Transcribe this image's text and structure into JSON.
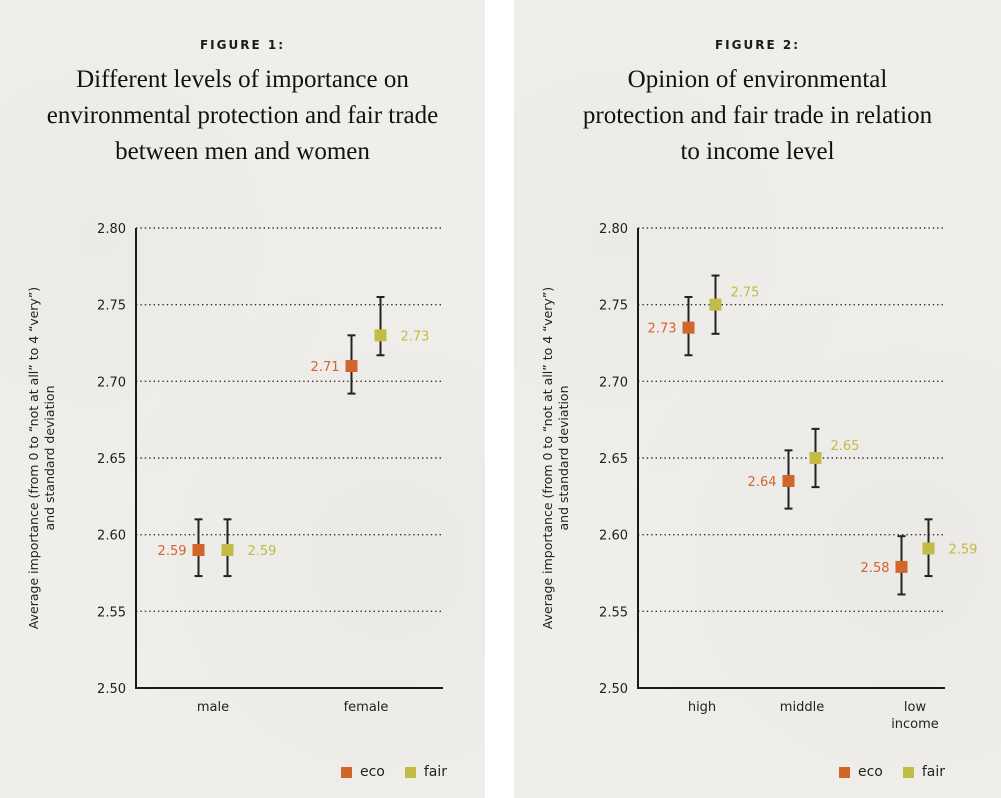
{
  "colors": {
    "eco": "#d2652a",
    "fair": "#c2bb45",
    "axis": "#1a1a1a",
    "grid": "#333333"
  },
  "legend": [
    {
      "key": "eco",
      "label": "eco"
    },
    {
      "key": "fair",
      "label": "fair"
    }
  ],
  "chart_data": [
    {
      "type": "scatter",
      "figure_label": "FIGURE 1:",
      "title": "Different levels of importance on environmental protection and fair trade between men and women",
      "title_lines": [
        "Different levels of importance on",
        "environmental protection and fair trade",
        "between men and women"
      ],
      "ylabel_lines": [
        "Average importance (from 0 to “not at all” to 4 “very”)",
        "and standard deviation"
      ],
      "xlabel": "",
      "ylim": [
        2.5,
        2.8
      ],
      "yticks": [
        "2.50",
        "2.55",
        "2.60",
        "2.65",
        "2.70",
        "2.75",
        "2.80"
      ],
      "grid": true,
      "legend_position": "bottom-right",
      "categories": [
        [
          "male"
        ],
        [
          "female"
        ]
      ],
      "series": [
        {
          "name": "eco",
          "values": [
            2.59,
            2.71
          ],
          "labels": [
            "2.59",
            "2.71"
          ],
          "err_low": [
            2.573,
            2.692
          ],
          "err_high": [
            2.61,
            2.73
          ],
          "label_side": "left"
        },
        {
          "name": "fair",
          "values": [
            2.59,
            2.73
          ],
          "labels": [
            "2.59",
            "2.73"
          ],
          "err_low": [
            2.573,
            2.717
          ],
          "err_high": [
            2.61,
            2.755
          ],
          "label_side": "right"
        }
      ]
    },
    {
      "type": "scatter",
      "figure_label": "FIGURE 2:",
      "title": "Opinion of environmental protection and fair trade in relation to income level",
      "title_lines": [
        "Opinion of environmental",
        "protection and fair trade in relation",
        "to income level"
      ],
      "ylabel_lines": [
        "Average importance (from 0 to “not at all” to 4 “very”)",
        "and standard deviation"
      ],
      "xlabel": "",
      "ylim": [
        2.5,
        2.8
      ],
      "yticks": [
        "2.50",
        "2.55",
        "2.60",
        "2.65",
        "2.70",
        "2.75",
        "2.80"
      ],
      "grid": true,
      "legend_position": "bottom-right",
      "categories": [
        [
          "high"
        ],
        [
          "middle"
        ],
        [
          "low",
          "income"
        ]
      ],
      "series": [
        {
          "name": "eco",
          "values": [
            2.735,
            2.635,
            2.579
          ],
          "labels": [
            "2.73",
            "2.64",
            "2.58"
          ],
          "err_low": [
            2.717,
            2.617,
            2.561
          ],
          "err_high": [
            2.755,
            2.655,
            2.599
          ],
          "label_side": "left"
        },
        {
          "name": "fair",
          "values": [
            2.75,
            2.65,
            2.591
          ],
          "labels": [
            "2.75",
            "2.65",
            "2.59"
          ],
          "err_low": [
            2.731,
            2.631,
            2.573
          ],
          "err_high": [
            2.769,
            2.669,
            2.61
          ],
          "label_side": "right-up"
        }
      ]
    }
  ]
}
